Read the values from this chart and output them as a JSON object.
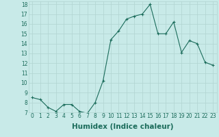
{
  "xlabel": "Humidex (Indice chaleur)",
  "x": [
    0,
    1,
    2,
    3,
    4,
    5,
    6,
    7,
    8,
    9,
    10,
    11,
    12,
    13,
    14,
    15,
    16,
    17,
    18,
    19,
    20,
    21,
    22,
    23
  ],
  "y": [
    8.5,
    8.3,
    7.5,
    7.1,
    7.8,
    7.8,
    7.1,
    6.9,
    8.0,
    10.2,
    14.4,
    15.3,
    16.5,
    16.8,
    17.0,
    18.0,
    15.0,
    15.0,
    16.2,
    13.1,
    14.3,
    14.0,
    12.1,
    11.8
  ],
  "ylim": [
    7,
    18
  ],
  "xlim": [
    -0.5,
    23.5
  ],
  "yticks": [
    7,
    8,
    9,
    10,
    11,
    12,
    13,
    14,
    15,
    16,
    17,
    18
  ],
  "xticks": [
    0,
    1,
    2,
    3,
    4,
    5,
    6,
    7,
    8,
    9,
    10,
    11,
    12,
    13,
    14,
    15,
    16,
    17,
    18,
    19,
    20,
    21,
    22,
    23
  ],
  "line_color": "#1a6b5a",
  "marker": "+",
  "bg_color": "#c8eae8",
  "grid_color": "#b0d4d0",
  "tick_label_fontsize": 5.5,
  "xlabel_fontsize": 7.5
}
